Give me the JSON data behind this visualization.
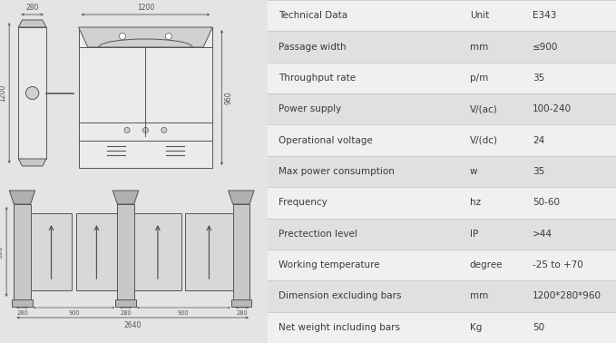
{
  "bg_color": "#e4e4e4",
  "table_bg_light": "#f0f0f0",
  "table_bg_dark": "#e0e0e0",
  "table_border": "#c8c8c8",
  "text_color": "#3a3a3a",
  "line_color": "#555555",
  "rows": [
    [
      "Technical Data",
      "Unit",
      "E343"
    ],
    [
      "Passage width",
      "mm",
      "≤900"
    ],
    [
      "Throughput rate",
      "p/m",
      "35"
    ],
    [
      "Power supply",
      "V/(ac)",
      "100-240"
    ],
    [
      "Operational voltage",
      "V/(dc)",
      "24"
    ],
    [
      "Max power consumption",
      "w",
      "35"
    ],
    [
      "Frequency",
      "hz",
      "50-60"
    ],
    [
      "Prectection level",
      "IP",
      ">44"
    ],
    [
      "Working temperature",
      "degree",
      "-25 to +70"
    ],
    [
      "Dimension excluding bars",
      "mm",
      "1200*280*960"
    ],
    [
      "Net weight including bars",
      "Kg",
      "50"
    ]
  ]
}
